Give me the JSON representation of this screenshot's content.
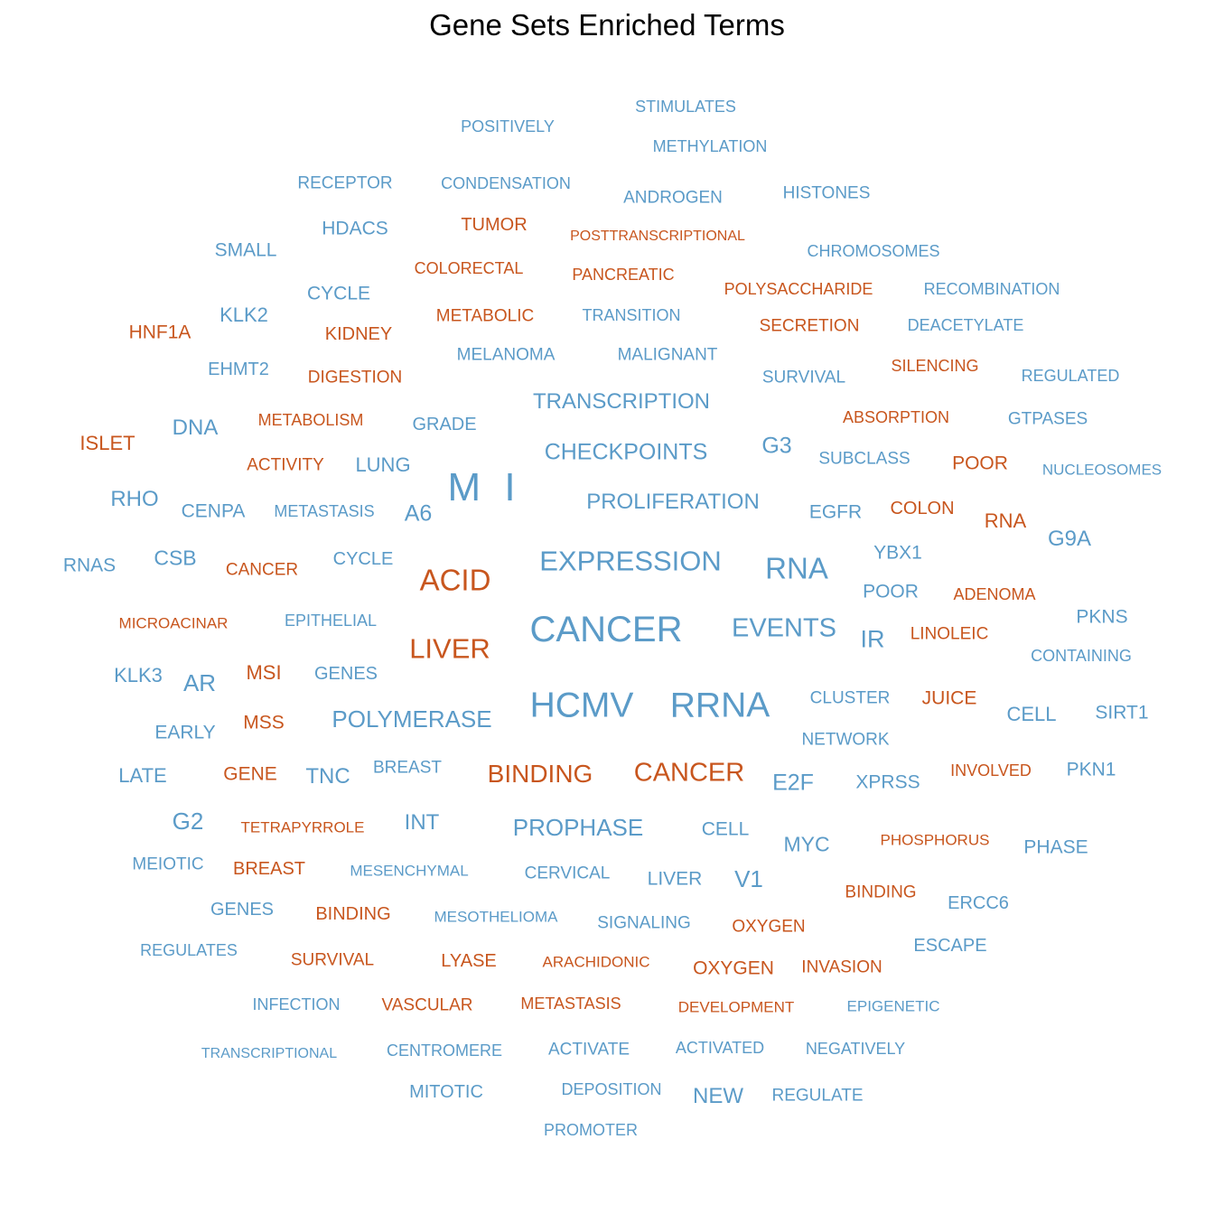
{
  "title": "Gene Sets Enriched Terms",
  "colors": {
    "blue": "#5b9bc8",
    "orange": "#c8561e"
  },
  "chart_data": {
    "type": "wordcloud",
    "title": "Gene Sets Enriched Terms",
    "words": [
      {
        "text": "STIMULATES",
        "weight": 1,
        "group": "blue"
      },
      {
        "text": "POSITIVELY",
        "weight": 1,
        "group": "blue"
      },
      {
        "text": "METHYLATION",
        "weight": 1,
        "group": "blue"
      },
      {
        "text": "RECEPTOR",
        "weight": 1,
        "group": "blue"
      },
      {
        "text": "CONDENSATION",
        "weight": 1,
        "group": "blue"
      },
      {
        "text": "ANDROGEN",
        "weight": 1,
        "group": "blue"
      },
      {
        "text": "HISTONES",
        "weight": 1,
        "group": "blue"
      },
      {
        "text": "HDACS",
        "weight": 1,
        "group": "blue"
      },
      {
        "text": "TUMOR",
        "weight": 1,
        "group": "orange"
      },
      {
        "text": "POSTTRANSCRIPTIONAL",
        "weight": 1,
        "group": "orange"
      },
      {
        "text": "SMALL",
        "weight": 1,
        "group": "blue"
      },
      {
        "text": "CHROMOSOMES",
        "weight": 1,
        "group": "blue"
      },
      {
        "text": "COLORECTAL",
        "weight": 1,
        "group": "orange"
      },
      {
        "text": "PANCREATIC",
        "weight": 1,
        "group": "orange"
      },
      {
        "text": "CYCLE",
        "weight": 1,
        "group": "blue"
      },
      {
        "text": "POLYSACCHARIDE",
        "weight": 1,
        "group": "orange"
      },
      {
        "text": "RECOMBINATION",
        "weight": 1,
        "group": "blue"
      },
      {
        "text": "KLK2",
        "weight": 1,
        "group": "blue"
      },
      {
        "text": "METABOLIC",
        "weight": 1,
        "group": "orange"
      },
      {
        "text": "TRANSITION",
        "weight": 1,
        "group": "blue"
      },
      {
        "text": "HNF1A",
        "weight": 1,
        "group": "orange"
      },
      {
        "text": "KIDNEY",
        "weight": 1,
        "group": "orange"
      },
      {
        "text": "SECRETION",
        "weight": 1,
        "group": "orange"
      },
      {
        "text": "DEACETYLATE",
        "weight": 1,
        "group": "blue"
      },
      {
        "text": "MELANOMA",
        "weight": 1,
        "group": "blue"
      },
      {
        "text": "MALIGNANT",
        "weight": 1,
        "group": "blue"
      },
      {
        "text": "EHMT2",
        "weight": 1,
        "group": "blue"
      },
      {
        "text": "DIGESTION",
        "weight": 1,
        "group": "orange"
      },
      {
        "text": "SILENCING",
        "weight": 1,
        "group": "orange"
      },
      {
        "text": "SURVIVAL",
        "weight": 1,
        "group": "blue"
      },
      {
        "text": "REGULATED",
        "weight": 1,
        "group": "blue"
      },
      {
        "text": "TRANSCRIPTION",
        "weight": 2,
        "group": "blue"
      },
      {
        "text": "METABOLISM",
        "weight": 1,
        "group": "orange"
      },
      {
        "text": "DNA",
        "weight": 1,
        "group": "blue"
      },
      {
        "text": "GRADE",
        "weight": 1,
        "group": "blue"
      },
      {
        "text": "ABSORPTION",
        "weight": 1,
        "group": "orange"
      },
      {
        "text": "GTPASES",
        "weight": 1,
        "group": "blue"
      },
      {
        "text": "ISLET",
        "weight": 1,
        "group": "orange"
      },
      {
        "text": "CHECKPOINTS",
        "weight": 2,
        "group": "blue"
      },
      {
        "text": "G3",
        "weight": 1,
        "group": "blue"
      },
      {
        "text": "ACTIVITY",
        "weight": 1,
        "group": "orange"
      },
      {
        "text": "LUNG",
        "weight": 1,
        "group": "blue"
      },
      {
        "text": "SUBCLASS",
        "weight": 1,
        "group": "blue"
      },
      {
        "text": "POOR",
        "weight": 1,
        "group": "orange"
      },
      {
        "text": "NUCLEOSOMES",
        "weight": 1,
        "group": "blue"
      },
      {
        "text": "M I",
        "weight": 4,
        "group": "blue"
      },
      {
        "text": "RHO",
        "weight": 1,
        "group": "blue"
      },
      {
        "text": "PROLIFERATION",
        "weight": 2,
        "group": "blue"
      },
      {
        "text": "CENPA",
        "weight": 1,
        "group": "blue"
      },
      {
        "text": "METASTASIS",
        "weight": 1,
        "group": "blue"
      },
      {
        "text": "A6",
        "weight": 1,
        "group": "blue"
      },
      {
        "text": "EGFR",
        "weight": 1,
        "group": "blue"
      },
      {
        "text": "COLON",
        "weight": 1,
        "group": "orange"
      },
      {
        "text": "RNA",
        "weight": 1,
        "group": "orange"
      },
      {
        "text": "G9A",
        "weight": 1,
        "group": "blue"
      },
      {
        "text": "YBX1",
        "weight": 1,
        "group": "blue"
      },
      {
        "text": "CSB",
        "weight": 1,
        "group": "blue"
      },
      {
        "text": "RNAS",
        "weight": 1,
        "group": "blue"
      },
      {
        "text": "CANCER",
        "weight": 1,
        "group": "orange"
      },
      {
        "text": "CYCLE",
        "weight": 1,
        "group": "blue"
      },
      {
        "text": "EXPRESSION",
        "weight": 3,
        "group": "blue"
      },
      {
        "text": "RNA",
        "weight": 3,
        "group": "blue"
      },
      {
        "text": "ACID",
        "weight": 3,
        "group": "orange"
      },
      {
        "text": "POOR",
        "weight": 1,
        "group": "blue"
      },
      {
        "text": "ADENOMA",
        "weight": 1,
        "group": "orange"
      },
      {
        "text": "PKNS",
        "weight": 1,
        "group": "blue"
      },
      {
        "text": "MICROACINAR",
        "weight": 1,
        "group": "orange"
      },
      {
        "text": "EPITHELIAL",
        "weight": 1,
        "group": "blue"
      },
      {
        "text": "CANCER",
        "weight": 4,
        "group": "blue"
      },
      {
        "text": "EVENTS",
        "weight": 2,
        "group": "blue"
      },
      {
        "text": "IR",
        "weight": 2,
        "group": "blue"
      },
      {
        "text": "LINOLEIC",
        "weight": 1,
        "group": "orange"
      },
      {
        "text": "LIVER",
        "weight": 3,
        "group": "orange"
      },
      {
        "text": "CONTAINING",
        "weight": 1,
        "group": "blue"
      },
      {
        "text": "KLK3",
        "weight": 1,
        "group": "blue"
      },
      {
        "text": "AR",
        "weight": 2,
        "group": "blue"
      },
      {
        "text": "MSI",
        "weight": 1,
        "group": "orange"
      },
      {
        "text": "GENES",
        "weight": 1,
        "group": "blue"
      },
      {
        "text": "HCMV",
        "weight": 4,
        "group": "blue"
      },
      {
        "text": "RRNA",
        "weight": 4,
        "group": "blue"
      },
      {
        "text": "CLUSTER",
        "weight": 1,
        "group": "blue"
      },
      {
        "text": "JUICE",
        "weight": 1,
        "group": "orange"
      },
      {
        "text": "CELL",
        "weight": 1,
        "group": "blue"
      },
      {
        "text": "SIRT1",
        "weight": 1,
        "group": "blue"
      },
      {
        "text": "EARLY",
        "weight": 1,
        "group": "blue"
      },
      {
        "text": "MSS",
        "weight": 1,
        "group": "orange"
      },
      {
        "text": "POLYMERASE",
        "weight": 2,
        "group": "blue"
      },
      {
        "text": "NETWORK",
        "weight": 1,
        "group": "blue"
      },
      {
        "text": "LATE",
        "weight": 1,
        "group": "blue"
      },
      {
        "text": "GENE",
        "weight": 1,
        "group": "orange"
      },
      {
        "text": "TNC",
        "weight": 1,
        "group": "blue"
      },
      {
        "text": "BREAST",
        "weight": 1,
        "group": "blue"
      },
      {
        "text": "BINDING",
        "weight": 2,
        "group": "orange"
      },
      {
        "text": "CANCER",
        "weight": 2,
        "group": "orange"
      },
      {
        "text": "E2F",
        "weight": 1,
        "group": "blue"
      },
      {
        "text": "XPRSS",
        "weight": 1,
        "group": "blue"
      },
      {
        "text": "INVOLVED",
        "weight": 1,
        "group": "orange"
      },
      {
        "text": "PKN1",
        "weight": 1,
        "group": "blue"
      },
      {
        "text": "G2",
        "weight": 2,
        "group": "blue"
      },
      {
        "text": "TETRAPYRROLE",
        "weight": 1,
        "group": "orange"
      },
      {
        "text": "INT",
        "weight": 1,
        "group": "blue"
      },
      {
        "text": "PROPHASE",
        "weight": 2,
        "group": "blue"
      },
      {
        "text": "CELL",
        "weight": 1,
        "group": "blue"
      },
      {
        "text": "MYC",
        "weight": 1,
        "group": "blue"
      },
      {
        "text": "PHOSPHORUS",
        "weight": 1,
        "group": "orange"
      },
      {
        "text": "PHASE",
        "weight": 1,
        "group": "blue"
      },
      {
        "text": "MEIOTIC",
        "weight": 1,
        "group": "blue"
      },
      {
        "text": "BREAST",
        "weight": 1,
        "group": "orange"
      },
      {
        "text": "MESENCHYMAL",
        "weight": 1,
        "group": "blue"
      },
      {
        "text": "CERVICAL",
        "weight": 1,
        "group": "blue"
      },
      {
        "text": "LIVER",
        "weight": 1,
        "group": "blue"
      },
      {
        "text": "V1",
        "weight": 2,
        "group": "blue"
      },
      {
        "text": "BINDING",
        "weight": 1,
        "group": "orange"
      },
      {
        "text": "ERCC6",
        "weight": 1,
        "group": "blue"
      },
      {
        "text": "GENES",
        "weight": 1,
        "group": "blue"
      },
      {
        "text": "BINDING",
        "weight": 1,
        "group": "orange"
      },
      {
        "text": "MESOTHELIOMA",
        "weight": 1,
        "group": "blue"
      },
      {
        "text": "SIGNALING",
        "weight": 1,
        "group": "blue"
      },
      {
        "text": "OXYGEN",
        "weight": 1,
        "group": "orange"
      },
      {
        "text": "REGULATES",
        "weight": 1,
        "group": "blue"
      },
      {
        "text": "ESCAPE",
        "weight": 1,
        "group": "blue"
      },
      {
        "text": "SURVIVAL",
        "weight": 1,
        "group": "orange"
      },
      {
        "text": "LYASE",
        "weight": 1,
        "group": "orange"
      },
      {
        "text": "ARACHIDONIC",
        "weight": 1,
        "group": "orange"
      },
      {
        "text": "OXYGEN",
        "weight": 1,
        "group": "orange"
      },
      {
        "text": "INVASION",
        "weight": 1,
        "group": "orange"
      },
      {
        "text": "INFECTION",
        "weight": 1,
        "group": "blue"
      },
      {
        "text": "VASCULAR",
        "weight": 1,
        "group": "orange"
      },
      {
        "text": "METASTASIS",
        "weight": 1,
        "group": "orange"
      },
      {
        "text": "DEVELOPMENT",
        "weight": 1,
        "group": "orange"
      },
      {
        "text": "EPIGENETIC",
        "weight": 1,
        "group": "blue"
      },
      {
        "text": "TRANSCRIPTIONAL",
        "weight": 1,
        "group": "blue"
      },
      {
        "text": "CENTROMERE",
        "weight": 1,
        "group": "blue"
      },
      {
        "text": "ACTIVATE",
        "weight": 1,
        "group": "blue"
      },
      {
        "text": "ACTIVATED",
        "weight": 1,
        "group": "blue"
      },
      {
        "text": "NEGATIVELY",
        "weight": 1,
        "group": "blue"
      },
      {
        "text": "MITOTIC",
        "weight": 1,
        "group": "blue"
      },
      {
        "text": "DEPOSITION",
        "weight": 1,
        "group": "blue"
      },
      {
        "text": "NEW",
        "weight": 1,
        "group": "blue"
      },
      {
        "text": "REGULATE",
        "weight": 1,
        "group": "blue"
      },
      {
        "text": "PROMOTER",
        "weight": 1,
        "group": "blue"
      }
    ]
  }
}
